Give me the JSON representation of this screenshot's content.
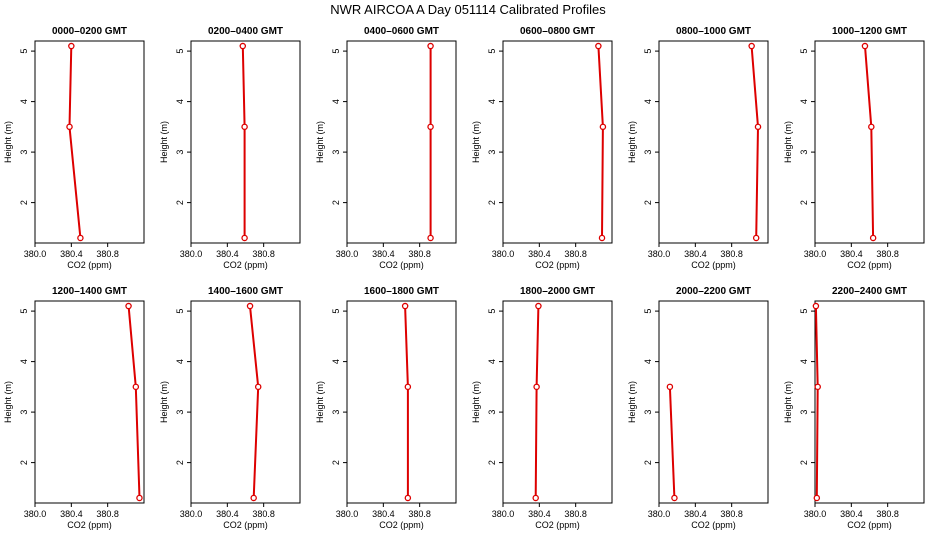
{
  "title": "NWR AIRCOA A  Day 051114  Calibrated Profiles",
  "colors": {
    "profile": "#dd0000",
    "axis": "#000000",
    "background": "#ffffff"
  },
  "chart_data": [
    {
      "type": "line",
      "title": "0000–0200 GMT",
      "xlabel": "CO2 (ppm)",
      "ylabel": "Height (m)",
      "xlim": [
        380.0,
        381.2
      ],
      "ylim": [
        1.2,
        5.2
      ],
      "x_ticks": [
        "380.0",
        "380.4",
        "380.8"
      ],
      "y_ticks": [
        "2",
        "3",
        "4",
        "5"
      ],
      "x": [
        380.4,
        380.38,
        380.5
      ],
      "y": [
        5.1,
        3.5,
        1.3
      ]
    },
    {
      "type": "line",
      "title": "0200–0400 GMT",
      "xlabel": "CO2 (ppm)",
      "ylabel": "Height (m)",
      "xlim": [
        380.0,
        381.2
      ],
      "ylim": [
        1.2,
        5.2
      ],
      "x_ticks": [
        "380.0",
        "380.4",
        "380.8"
      ],
      "y_ticks": [
        "2",
        "3",
        "4",
        "5"
      ],
      "x": [
        380.57,
        380.59,
        380.59
      ],
      "y": [
        5.1,
        3.5,
        1.3
      ]
    },
    {
      "type": "line",
      "title": "0400–0600 GMT",
      "xlabel": "CO2 (ppm)",
      "ylabel": "Height (m)",
      "xlim": [
        380.0,
        381.2
      ],
      "ylim": [
        1.2,
        5.2
      ],
      "x_ticks": [
        "380.0",
        "380.4",
        "380.8"
      ],
      "y_ticks": [
        "2",
        "3",
        "4",
        "5"
      ],
      "x": [
        380.92,
        380.92,
        380.92
      ],
      "y": [
        5.1,
        3.5,
        1.3
      ]
    },
    {
      "type": "line",
      "title": "0600–0800 GMT",
      "xlabel": "CO2 (ppm)",
      "ylabel": "Height (m)",
      "xlim": [
        380.0,
        381.2
      ],
      "ylim": [
        1.2,
        5.2
      ],
      "x_ticks": [
        "380.0",
        "380.4",
        "380.8"
      ],
      "y_ticks": [
        "2",
        "3",
        "4",
        "5"
      ],
      "x": [
        381.05,
        381.1,
        381.09
      ],
      "y": [
        5.1,
        3.5,
        1.3
      ]
    },
    {
      "type": "line",
      "title": "0800–1000 GMT",
      "xlabel": "CO2 (ppm)",
      "ylabel": "Height (m)",
      "xlim": [
        380.0,
        381.2
      ],
      "ylim": [
        1.2,
        5.2
      ],
      "x_ticks": [
        "380.0",
        "380.4",
        "380.8"
      ],
      "y_ticks": [
        "2",
        "3",
        "4",
        "5"
      ],
      "x": [
        381.02,
        381.09,
        381.07
      ],
      "y": [
        5.1,
        3.5,
        1.3
      ]
    },
    {
      "type": "line",
      "title": "1000–1200 GMT",
      "xlabel": "CO2 (ppm)",
      "ylabel": "Height (m)",
      "xlim": [
        380.0,
        381.2
      ],
      "ylim": [
        1.2,
        5.2
      ],
      "x_ticks": [
        "380.0",
        "380.4",
        "380.8"
      ],
      "y_ticks": [
        "2",
        "3",
        "4",
        "5"
      ],
      "x": [
        380.55,
        380.62,
        380.64
      ],
      "y": [
        5.1,
        3.5,
        1.3
      ]
    },
    {
      "type": "line",
      "title": "1200–1400 GMT",
      "xlabel": "CO2 (ppm)",
      "ylabel": "Height (m)",
      "xlim": [
        380.0,
        381.2
      ],
      "ylim": [
        1.2,
        5.2
      ],
      "x_ticks": [
        "380.0",
        "380.4",
        "380.8"
      ],
      "y_ticks": [
        "2",
        "3",
        "4",
        "5"
      ],
      "x": [
        381.03,
        381.11,
        381.15
      ],
      "y": [
        5.1,
        3.5,
        1.3
      ]
    },
    {
      "type": "line",
      "title": "1400–1600 GMT",
      "xlabel": "CO2 (ppm)",
      "ylabel": "Height (m)",
      "xlim": [
        380.0,
        381.2
      ],
      "ylim": [
        1.2,
        5.2
      ],
      "x_ticks": [
        "380.0",
        "380.4",
        "380.8"
      ],
      "y_ticks": [
        "2",
        "3",
        "4",
        "5"
      ],
      "x": [
        380.65,
        380.74,
        380.69
      ],
      "y": [
        5.1,
        3.5,
        1.3
      ]
    },
    {
      "type": "line",
      "title": "1600–1800 GMT",
      "xlabel": "CO2 (ppm)",
      "ylabel": "Height (m)",
      "xlim": [
        380.0,
        381.2
      ],
      "ylim": [
        1.2,
        5.2
      ],
      "x_ticks": [
        "380.0",
        "380.4",
        "380.8"
      ],
      "y_ticks": [
        "2",
        "3",
        "4",
        "5"
      ],
      "x": [
        380.64,
        380.67,
        380.67
      ],
      "y": [
        5.1,
        3.5,
        1.3
      ]
    },
    {
      "type": "line",
      "title": "1800–2000 GMT",
      "xlabel": "CO2 (ppm)",
      "ylabel": "Height (m)",
      "xlim": [
        380.0,
        381.2
      ],
      "ylim": [
        1.2,
        5.2
      ],
      "x_ticks": [
        "380.0",
        "380.4",
        "380.8"
      ],
      "y_ticks": [
        "2",
        "3",
        "4",
        "5"
      ],
      "x": [
        380.39,
        380.37,
        380.36
      ],
      "y": [
        5.1,
        3.5,
        1.3
      ]
    },
    {
      "type": "line",
      "title": "2000–2200 GMT",
      "xlabel": "CO2 (ppm)",
      "ylabel": "Height (m)",
      "xlim": [
        380.0,
        381.2
      ],
      "ylim": [
        1.2,
        5.2
      ],
      "x_ticks": [
        "380.0",
        "380.4",
        "380.8"
      ],
      "y_ticks": [
        "2",
        "3",
        "4",
        "5"
      ],
      "x": [
        380.12,
        380.17
      ],
      "y": [
        3.5,
        1.3
      ]
    },
    {
      "type": "line",
      "title": "2200–2400 GMT",
      "xlabel": "CO2 (ppm)",
      "ylabel": "Height (m)",
      "xlim": [
        380.0,
        381.2
      ],
      "ylim": [
        1.2,
        5.2
      ],
      "x_ticks": [
        "380.0",
        "380.4",
        "380.8"
      ],
      "y_ticks": [
        "2",
        "3",
        "4",
        "5"
      ],
      "x": [
        380.01,
        380.03,
        380.02
      ],
      "y": [
        5.1,
        3.5,
        1.3
      ]
    }
  ]
}
